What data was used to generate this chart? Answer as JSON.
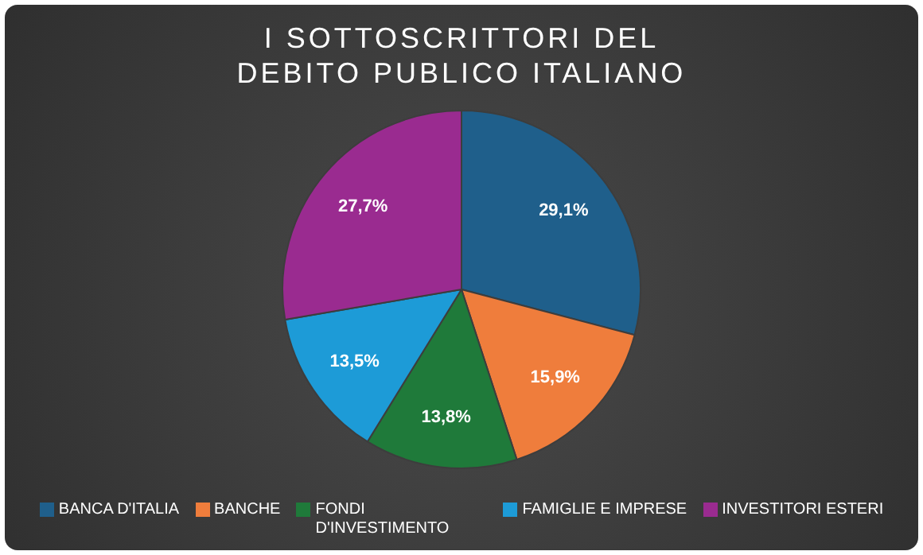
{
  "chart_data": {
    "type": "pie",
    "title": "I SOTTOSCRITTORI DEL DEBITO PUBLICO ITALIANO",
    "categories": [
      "BANCA D'ITALIA",
      "BANCHE",
      "FONDI D'INVESTIMENTO",
      "FAMIGLIE E IMPRESE",
      "INVESTITORI ESTERI"
    ],
    "values": [
      29.1,
      15.9,
      13.8,
      13.5,
      27.7
    ],
    "value_labels": [
      "29,1%",
      "15,9%",
      "13,8%",
      "13,5%",
      "27,7%"
    ],
    "colors": [
      "#1f5f8b",
      "#ef7d3c",
      "#1f7a3a",
      "#1d9bd7",
      "#9a2b90"
    ],
    "legend": "bottom"
  }
}
